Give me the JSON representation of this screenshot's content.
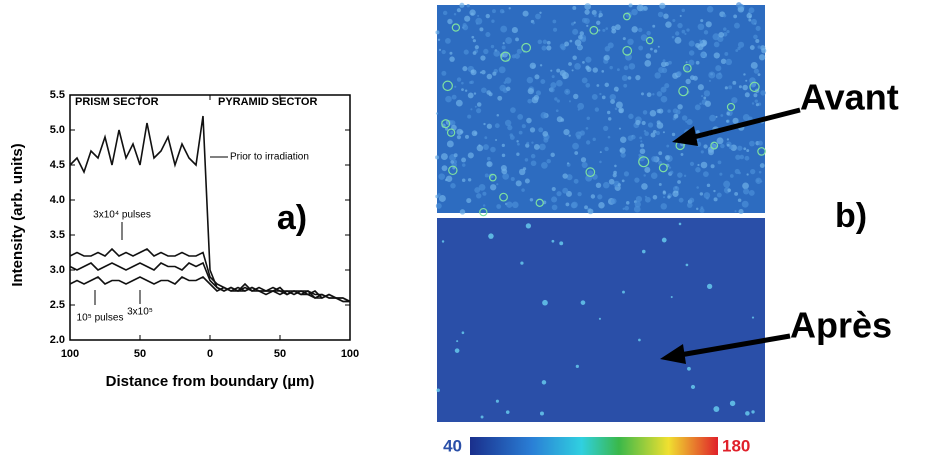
{
  "chart_data": {
    "type": "line",
    "xlabel": "Distance from boundary (µm)",
    "ylabel": "Intensity (arb. units)",
    "annotations": [
      "PRISM SECTOR",
      "PYRAMID SECTOR"
    ],
    "x": [
      -100,
      -95,
      -90,
      -85,
      -80,
      -75,
      -70,
      -65,
      -60,
      -55,
      -50,
      -45,
      -40,
      -35,
      -30,
      -25,
      -20,
      -15,
      -10,
      -5,
      0,
      5,
      10,
      15,
      20,
      25,
      30,
      35,
      40,
      45,
      50,
      55,
      60,
      65,
      70,
      75,
      80,
      85,
      90,
      95,
      100
    ],
    "series": [
      {
        "name": "Prior to irradiation",
        "color": "#111111",
        "values": [
          4.5,
          4.6,
          4.4,
          4.7,
          4.6,
          4.9,
          4.5,
          5.0,
          4.6,
          4.8,
          4.5,
          5.1,
          4.6,
          4.7,
          4.9,
          4.5,
          4.8,
          4.6,
          4.5,
          5.2,
          3.0,
          2.75,
          2.7,
          2.75,
          2.7,
          2.8,
          2.7,
          2.75,
          2.7,
          2.7,
          2.75,
          2.65,
          2.7,
          2.7,
          2.65,
          2.7,
          2.6,
          2.65,
          2.6,
          2.6,
          2.55
        ]
      },
      {
        "name": "3x10⁴ pulses",
        "color": "#111111",
        "values": [
          3.2,
          3.25,
          3.2,
          3.2,
          3.25,
          3.2,
          3.3,
          3.2,
          3.25,
          3.2,
          3.25,
          3.3,
          3.2,
          3.25,
          3.2,
          3.2,
          3.25,
          3.2,
          3.2,
          3.25,
          2.9,
          2.8,
          2.75,
          2.7,
          2.75,
          2.7,
          2.75,
          2.7,
          2.7,
          2.75,
          2.7,
          2.7,
          2.65,
          2.7,
          2.7,
          2.65,
          2.65,
          2.6,
          2.6,
          2.6,
          2.55
        ]
      },
      {
        "name": "10⁵ pulses",
        "color": "#111111",
        "values": [
          3.05,
          3.0,
          3.05,
          3.1,
          3.0,
          3.05,
          3.1,
          3.05,
          3.0,
          3.05,
          3.1,
          3.05,
          3.0,
          3.1,
          3.05,
          3.05,
          3.0,
          3.1,
          3.05,
          3.1,
          2.85,
          2.75,
          2.7,
          2.75,
          2.7,
          2.7,
          2.75,
          2.7,
          2.7,
          2.7,
          2.65,
          2.7,
          2.7,
          2.65,
          2.7,
          2.6,
          2.65,
          2.6,
          2.6,
          2.55,
          2.55
        ]
      },
      {
        "name": "3x10⁵",
        "color": "#111111",
        "values": [
          2.8,
          2.85,
          2.8,
          2.85,
          2.9,
          2.8,
          2.85,
          2.85,
          2.8,
          2.85,
          2.9,
          2.85,
          2.8,
          2.85,
          2.85,
          2.8,
          2.9,
          2.85,
          2.85,
          2.9,
          2.8,
          2.7,
          2.75,
          2.7,
          2.7,
          2.75,
          2.7,
          2.7,
          2.65,
          2.7,
          2.7,
          2.65,
          2.7,
          2.65,
          2.65,
          2.6,
          2.6,
          2.65,
          2.6,
          2.55,
          2.55
        ]
      }
    ],
    "xlim": [
      -100,
      100
    ],
    "xticks": [
      {
        "value": -100,
        "label": "100"
      },
      {
        "value": -50,
        "label": "50"
      },
      0,
      50,
      100
    ],
    "ylim": [
      2,
      5.5
    ],
    "yticks": [
      {
        "value": 2,
        "label": "2.0"
      },
      2.5,
      {
        "value": 3,
        "label": "3.0"
      },
      3.5,
      {
        "value": 4,
        "label": "4.0"
      },
      4.5,
      {
        "value": 5,
        "label": "5.0"
      },
      5.5
    ]
  },
  "panels": {
    "a": "a)",
    "b": "b)",
    "before": "Avant",
    "after": "Après"
  },
  "colorbar": {
    "min": 40,
    "max": 180
  }
}
